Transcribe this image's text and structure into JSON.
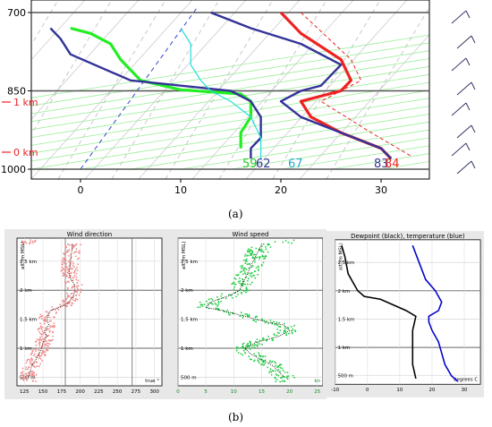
{
  "captions": {
    "a": "(a)",
    "b": "(b)"
  },
  "chart_data": [
    {
      "type": "line",
      "title": "",
      "xlabel": "",
      "ylabel": "",
      "x_ticks": [
        "0",
        "10",
        "20",
        "30"
      ],
      "pressure_ticks": [
        "700",
        "850",
        "1000"
      ],
      "altitude_labels": [
        "1 km",
        "0 km"
      ],
      "surface_labels": [
        {
          "text": "59",
          "color": "#22cc22"
        },
        {
          "text": "62",
          "color": "#333399"
        },
        {
          "text": "67",
          "color": "#22aacc"
        },
        {
          "text": "83",
          "color": "#333399"
        },
        {
          "text": "84",
          "color": "#ee2222"
        }
      ],
      "series": [
        {
          "color": "#ee2222",
          "points": [
            [
              20,
              700
            ],
            [
              22,
              740
            ],
            [
              26,
              790
            ],
            [
              27,
              830
            ],
            [
              26,
              850
            ],
            [
              22,
              870
            ],
            [
              23,
              900
            ],
            [
              26,
              930
            ],
            [
              30,
              960
            ],
            [
              31,
              980
            ]
          ]
        },
        {
          "color": "#333399",
          "points": [
            [
              13,
              700
            ],
            [
              17,
              730
            ],
            [
              22,
              760
            ],
            [
              26,
              800
            ],
            [
              24,
              840
            ],
            [
              22,
              850
            ],
            [
              20,
              870
            ],
            [
              22,
              900
            ],
            [
              26,
              930
            ],
            [
              30,
              960
            ],
            [
              31,
              980
            ]
          ]
        },
        {
          "color": "#22ee22",
          "points": [
            [
              -1,
              730
            ],
            [
              1,
              740
            ],
            [
              3,
              760
            ],
            [
              4,
              790
            ],
            [
              6,
              830
            ],
            [
              10,
              848
            ],
            [
              16,
              856
            ],
            [
              17,
              870
            ],
            [
              17,
              900
            ],
            [
              16,
              930
            ],
            [
              16,
              960
            ]
          ]
        },
        {
          "color": "#333399",
          "points": [
            [
              -3,
              730
            ],
            [
              -2,
              750
            ],
            [
              -1,
              780
            ],
            [
              5,
              830
            ],
            [
              15,
              850
            ],
            [
              17,
              870
            ],
            [
              18,
              900
            ],
            [
              18,
              940
            ],
            [
              17,
              960
            ],
            [
              17,
              980
            ]
          ]
        },
        {
          "color": "#22dddd",
          "points": [
            [
              10,
              730
            ],
            [
              11,
              760
            ],
            [
              11,
              800
            ],
            [
              12,
              830
            ],
            [
              13,
              850
            ],
            [
              15,
              870
            ],
            [
              17,
              900
            ],
            [
              18,
              940
            ],
            [
              18,
              960
            ],
            [
              18,
              980
            ]
          ]
        }
      ]
    },
    {
      "type": "scatter",
      "title": "Wind direction",
      "ylabel": "alt (m MSL)",
      "unit": "true °",
      "x_ticks": [
        "125",
        "150",
        "175",
        "200",
        "225",
        "250",
        "275",
        "300"
      ],
      "y_ticks": [
        "500 m",
        "1 km",
        "1.5 km",
        "2 km",
        "2.5 km"
      ],
      "xlim": [
        115,
        310
      ],
      "ylim": [
        350,
        2900
      ],
      "x": [
        190,
        188,
        186,
        185,
        187,
        192,
        193,
        191,
        185,
        180,
        170,
        160,
        155,
        158,
        152,
        155,
        150,
        148,
        145,
        140,
        135,
        130
      ],
      "y": [
        2800,
        2600,
        2400,
        2300,
        2200,
        2100,
        2000,
        1900,
        1800,
        1750,
        1700,
        1650,
        1500,
        1400,
        1300,
        1200,
        1100,
        1000,
        900,
        800,
        700,
        500
      ]
    },
    {
      "type": "scatter",
      "title": "Wind speed",
      "ylabel": "alt (m MSL)",
      "unit": "kn",
      "x_ticks": [
        "0",
        "5",
        "10",
        "15",
        "20",
        "25"
      ],
      "y_ticks": [
        "500 m",
        "1 km",
        "1.5 km",
        "2 km",
        "2.5 km"
      ],
      "xlim": [
        0,
        26
      ],
      "ylim": [
        350,
        2900
      ],
      "x": [
        15,
        14,
        13,
        12,
        11,
        9,
        6,
        5,
        8,
        12,
        16,
        19,
        20,
        18,
        14,
        12,
        13,
        15,
        17,
        18,
        19
      ],
      "y": [
        2800,
        2600,
        2400,
        2200,
        2000,
        1900,
        1800,
        1700,
        1650,
        1550,
        1450,
        1400,
        1300,
        1200,
        1100,
        1000,
        900,
        800,
        700,
        600,
        500
      ]
    },
    {
      "type": "line",
      "title": "Dewpoint (black), temperature (blue)",
      "ylabel": "alt (m MSL)",
      "unit": "degrees C",
      "x_ticks": [
        "-10",
        "0",
        "10",
        "20",
        "30"
      ],
      "y_ticks": [
        "500 m",
        "1 km",
        "1.5 km",
        "2 km",
        "2.5 km"
      ],
      "xlim": [
        -10,
        35
      ],
      "ylim": [
        350,
        2900
      ],
      "series": [
        {
          "color": "#000000",
          "points": [
            [
              -8,
              2800
            ],
            [
              -7,
              2600
            ],
            [
              -6,
              2300
            ],
            [
              -4,
              2100
            ],
            [
              -3,
              2000
            ],
            [
              -1,
              1900
            ],
            [
              4,
              1850
            ],
            [
              8,
              1750
            ],
            [
              12,
              1650
            ],
            [
              15,
              1550
            ],
            [
              14,
              1300
            ],
            [
              14,
              1000
            ],
            [
              14,
              700
            ],
            [
              15,
              450
            ]
          ]
        },
        {
          "color": "#0000cc",
          "points": [
            [
              14,
              2800
            ],
            [
              16,
              2500
            ],
            [
              18,
              2200
            ],
            [
              21,
              2000
            ],
            [
              23,
              1800
            ],
            [
              22,
              1650
            ],
            [
              19,
              1550
            ],
            [
              19,
              1450
            ],
            [
              20,
              1300
            ],
            [
              22,
              1100
            ],
            [
              23,
              900
            ],
            [
              24,
              700
            ],
            [
              26,
              500
            ],
            [
              28,
              400
            ]
          ]
        }
      ]
    }
  ]
}
